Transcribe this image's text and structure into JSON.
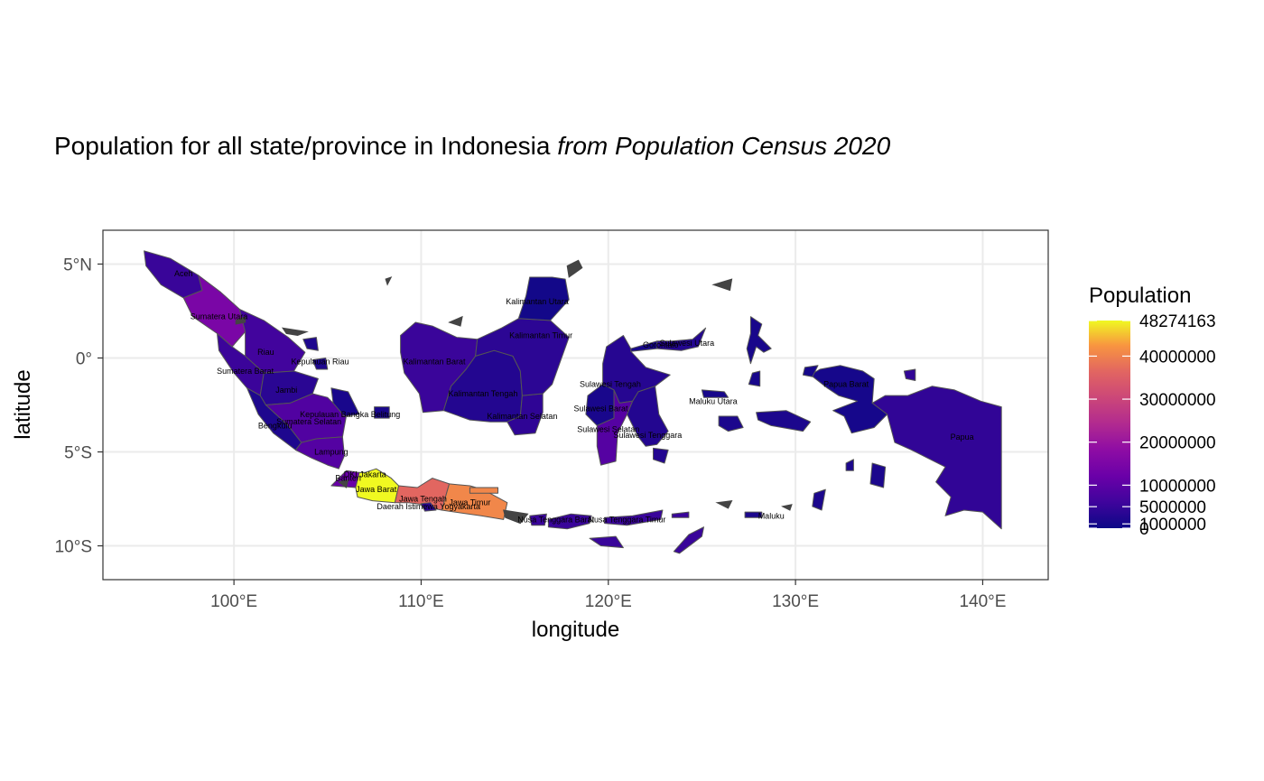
{
  "title": {
    "main": "Population for all state/province in Indonesia ",
    "italic": "from Population Census 2020"
  },
  "chart_data": {
    "type": "choropleth",
    "xlabel": "longitude",
    "ylabel": "latitude",
    "xlim": [
      93,
      143.5
    ],
    "ylim": [
      -11.8,
      6.8
    ],
    "x_ticks": [
      {
        "v": 100,
        "label": "100°E"
      },
      {
        "v": 110,
        "label": "110°E"
      },
      {
        "v": 120,
        "label": "120°E"
      },
      {
        "v": 130,
        "label": "130°E"
      },
      {
        "v": 140,
        "label": "140°E"
      }
    ],
    "y_ticks": [
      {
        "v": 5,
        "label": "5°N"
      },
      {
        "v": 0,
        "label": "0°"
      },
      {
        "v": -5,
        "label": "5°S"
      },
      {
        "v": -10,
        "label": "10°S"
      }
    ],
    "grid": true,
    "legend": {
      "title": "Population",
      "min": 0,
      "max": 48274163,
      "labels": [
        {
          "v": 48274163,
          "label": "48274163"
        },
        {
          "v": 40000000,
          "label": "40000000"
        },
        {
          "v": 30000000,
          "label": "30000000"
        },
        {
          "v": 20000000,
          "label": "20000000"
        },
        {
          "v": 10000000,
          "label": "10000000"
        },
        {
          "v": 5000000,
          "label": "5000000"
        },
        {
          "v": 1000000,
          "label": "1000000"
        },
        {
          "v": 0,
          "label": "0"
        }
      ],
      "placement": "right"
    },
    "colors": {
      "low": "#0d0887",
      "high": "#f0f921",
      "border": "#555555",
      "panel_border": "#333333",
      "grid": "#ebebeb"
    },
    "provinces": [
      {
        "name": "Aceh",
        "lon": 97.3,
        "lat": 4.5,
        "pop": 5274871
      },
      {
        "name": "Sumatera Utara",
        "lon": 99.2,
        "lat": 2.2,
        "pop": 14799361
      },
      {
        "name": "Riau",
        "lon": 101.7,
        "lat": 0.3,
        "pop": 6394087
      },
      {
        "name": "Kepulauan Riau",
        "lon": 104.6,
        "lat": -0.2,
        "pop": 2064564
      },
      {
        "name": "Sumatera Barat",
        "lon": 100.6,
        "lat": -0.7,
        "pop": 5534472
      },
      {
        "name": "Jambi",
        "lon": 102.8,
        "lat": -1.7,
        "pop": 3548228
      },
      {
        "name": "Kepulauan Bangka Belitung",
        "lon": 106.2,
        "lat": -3.0,
        "pop": 1455678
      },
      {
        "name": "Sumatera Selatan",
        "lon": 104.0,
        "lat": -3.4,
        "pop": 8467432
      },
      {
        "name": "Bengkulu",
        "lon": 102.2,
        "lat": -3.6,
        "pop": 2010670
      },
      {
        "name": "Lampung",
        "lon": 105.2,
        "lat": -5.0,
        "pop": 9007848
      },
      {
        "name": "Banten",
        "lon": 106.1,
        "lat": -6.4,
        "pop": 11904562
      },
      {
        "name": "DKI Jakarta",
        "lon": 107.0,
        "lat": -6.2,
        "pop": 10562088
      },
      {
        "name": "Jawa Barat",
        "lon": 107.6,
        "lat": -7.0,
        "pop": 48274162
      },
      {
        "name": "Jawa Tengah",
        "lon": 110.1,
        "lat": -7.5,
        "pop": 36516035
      },
      {
        "name": "Daerah Istimewa Yogyakarta",
        "lon": 110.4,
        "lat": -7.9,
        "pop": 3668719
      },
      {
        "name": "Jawa Timur",
        "lon": 112.6,
        "lat": -7.7,
        "pop": 40665696
      },
      {
        "name": "Kalimantan Barat",
        "lon": 110.7,
        "lat": -0.2,
        "pop": 5414390
      },
      {
        "name": "Kalimantan Tengah",
        "lon": 113.3,
        "lat": -1.9,
        "pop": 2669969
      },
      {
        "name": "Kalimantan Selatan",
        "lon": 115.4,
        "lat": -3.1,
        "pop": 4073584
      },
      {
        "name": "Kalimantan Timur",
        "lon": 116.4,
        "lat": 1.2,
        "pop": 3766039
      },
      {
        "name": "Kalimantan Utara",
        "lon": 116.2,
        "lat": 3.0,
        "pop": 701814
      },
      {
        "name": "Nusa Tenggara Barat",
        "lon": 117.2,
        "lat": -8.6,
        "pop": 5320092
      },
      {
        "name": "Nusa Tenggara Timur",
        "lon": 121.0,
        "lat": -8.6,
        "pop": 5325566
      },
      {
        "name": "Sulawesi Utara",
        "lon": 124.2,
        "lat": 0.8,
        "pop": 2621923
      },
      {
        "name": "Gorontalo",
        "lon": 122.8,
        "lat": 0.7,
        "pop": 1171681
      },
      {
        "name": "Sulawesi Tengah",
        "lon": 120.1,
        "lat": -1.4,
        "pop": 2985734
      },
      {
        "name": "Sulawesi Barat",
        "lon": 119.6,
        "lat": -2.7,
        "pop": 1419229
      },
      {
        "name": "Sulawesi Selatan",
        "lon": 120.0,
        "lat": -3.8,
        "pop": 9073509
      },
      {
        "name": "Sulawesi Tenggara",
        "lon": 122.1,
        "lat": -4.1,
        "pop": 2624875
      },
      {
        "name": "Maluku Utara",
        "lon": 125.6,
        "lat": -2.3,
        "pop": 1282937
      },
      {
        "name": "Maluku",
        "lon": 128.7,
        "lat": -8.4,
        "pop": 1848923
      },
      {
        "name": "Papua Barat",
        "lon": 132.7,
        "lat": -1.4,
        "pop": 1134068
      },
      {
        "name": "Papua",
        "lon": 138.9,
        "lat": -4.2,
        "pop": 4303707
      }
    ]
  }
}
